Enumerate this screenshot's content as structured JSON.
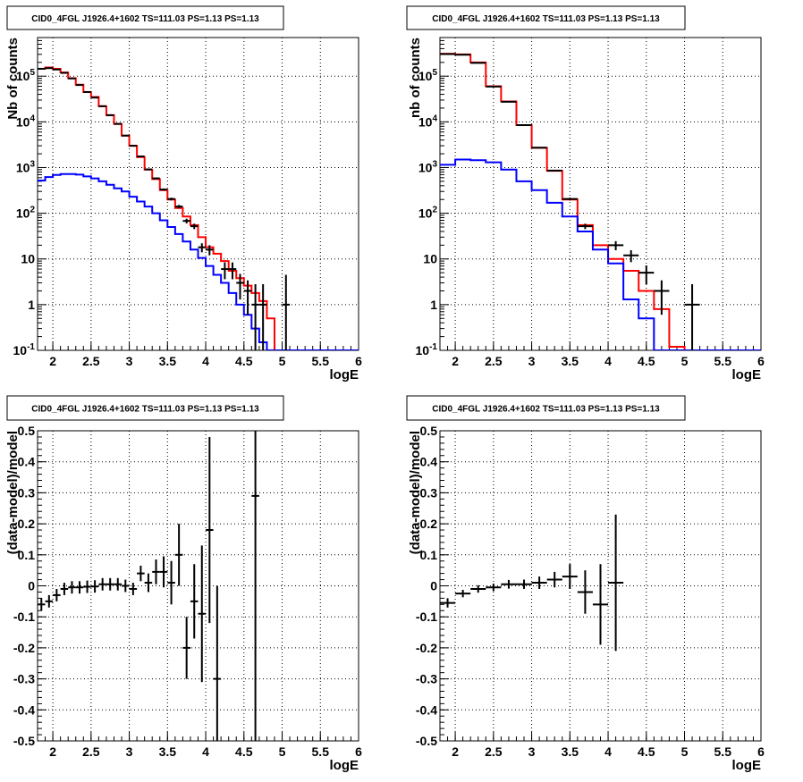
{
  "chart_data": [
    {
      "type": "line",
      "panel": "counts-all",
      "title": "CID0_4FGL J1926.4+1602 TS=111.03 PS=1.13 PS=1.13",
      "xlabel": "logE",
      "ylabel": "Nb of counts",
      "log_y": true,
      "xlim": [
        1.8,
        6.0
      ],
      "ylim": [
        0.1,
        700000
      ],
      "x_ticks": [
        "2",
        "2.5",
        "3",
        "3.5",
        "4",
        "4.5",
        "5",
        "5.5",
        "6"
      ],
      "y_ticks": [
        "10^-1",
        "1",
        "10",
        "10^2",
        "10^3",
        "10^4",
        "10^5"
      ],
      "grid": true,
      "bin_edges": [
        1.8,
        1.9,
        2.0,
        2.1,
        2.2,
        2.3,
        2.4,
        2.5,
        2.6,
        2.7,
        2.8,
        2.9,
        3.0,
        3.1,
        3.2,
        3.3,
        3.4,
        3.5,
        3.6,
        3.7,
        3.8,
        3.9,
        4.0,
        4.1,
        4.2,
        4.3,
        4.4,
        4.5,
        4.6,
        4.7,
        4.8,
        4.9,
        5.0,
        5.1,
        5.2,
        5.3,
        5.4,
        5.5,
        5.6,
        5.7,
        5.8,
        5.9,
        6.0
      ],
      "series": [
        {
          "color": "#ff0000",
          "style": "step",
          "values": [
            145000,
            155000,
            145000,
            120000,
            90000,
            65000,
            45000,
            35000,
            22000,
            14000,
            9000,
            5000,
            3000,
            1700,
            900,
            560,
            320,
            200,
            130,
            85,
            55,
            30,
            18,
            13,
            9,
            5.5,
            3.8,
            2.6,
            1.8,
            1.2,
            0.5,
            0.1,
            0.1,
            0.1,
            0.1,
            0.1,
            0.1,
            0.1,
            0.1,
            0.1,
            0.1,
            0.1
          ]
        },
        {
          "color": "#0000ff",
          "style": "step",
          "values": [
            520,
            620,
            690,
            720,
            720,
            700,
            640,
            580,
            500,
            420,
            350,
            300,
            230,
            180,
            140,
            100,
            70,
            50,
            35,
            24,
            16,
            10.5,
            7,
            4.5,
            3,
            1.8,
            1,
            0.6,
            0.3,
            0.15,
            0.1,
            0.1,
            0.1,
            0.1,
            0.1,
            0.1,
            0.1,
            0.1,
            0.1,
            0.1,
            0.1,
            0.1
          ]
        }
      ],
      "data_points": [
        {
          "x": 1.85,
          "y": 145000,
          "err_lo": 380,
          "err_hi": 380
        },
        {
          "x": 1.95,
          "y": 150000,
          "err_lo": 390,
          "err_hi": 390
        },
        {
          "x": 2.05,
          "y": 140000,
          "err_lo": 370,
          "err_hi": 370
        },
        {
          "x": 2.15,
          "y": 118000,
          "err_lo": 340,
          "err_hi": 340
        },
        {
          "x": 2.25,
          "y": 89000,
          "err_lo": 300,
          "err_hi": 300
        },
        {
          "x": 2.35,
          "y": 64000,
          "err_lo": 250,
          "err_hi": 250
        },
        {
          "x": 2.45,
          "y": 45000,
          "err_lo": 210,
          "err_hi": 210
        },
        {
          "x": 2.55,
          "y": 34000,
          "err_lo": 180,
          "err_hi": 180
        },
        {
          "x": 2.65,
          "y": 22000,
          "err_lo": 150,
          "err_hi": 150
        },
        {
          "x": 2.75,
          "y": 14000,
          "err_lo": 120,
          "err_hi": 120
        },
        {
          "x": 2.85,
          "y": 9000,
          "err_lo": 95,
          "err_hi": 95
        },
        {
          "x": 2.95,
          "y": 5000,
          "err_lo": 70,
          "err_hi": 70
        },
        {
          "x": 3.05,
          "y": 3000,
          "err_lo": 55,
          "err_hi": 55
        },
        {
          "x": 3.15,
          "y": 1750,
          "err_lo": 42,
          "err_hi": 42
        },
        {
          "x": 3.25,
          "y": 910,
          "err_lo": 30,
          "err_hi": 30
        },
        {
          "x": 3.35,
          "y": 580,
          "err_lo": 24,
          "err_hi": 24
        },
        {
          "x": 3.45,
          "y": 330,
          "err_lo": 18,
          "err_hi": 18
        },
        {
          "x": 3.55,
          "y": 205,
          "err_lo": 14,
          "err_hi": 14
        },
        {
          "x": 3.65,
          "y": 140,
          "err_lo": 12,
          "err_hi": 12
        },
        {
          "x": 3.75,
          "y": 68,
          "err_lo": 8,
          "err_hi": 8
        },
        {
          "x": 3.85,
          "y": 52,
          "err_lo": 7,
          "err_hi": 7
        },
        {
          "x": 3.95,
          "y": 18,
          "err_lo": 4,
          "err_hi": 4
        },
        {
          "x": 4.05,
          "y": 16,
          "err_lo": 4,
          "err_hi": 4
        },
        {
          "x": 4.25,
          "y": 6,
          "err_lo": 2.4,
          "err_hi": 2.4
        },
        {
          "x": 4.35,
          "y": 6,
          "err_lo": 2.4,
          "err_hi": 2.4
        },
        {
          "x": 4.45,
          "y": 3,
          "err_lo": 1.7,
          "err_hi": 1.7
        },
        {
          "x": 4.55,
          "y": 2,
          "err_lo": 1.4,
          "err_hi": 1.4
        },
        {
          "x": 4.65,
          "y": 1,
          "err_lo": 0.9,
          "err_hi": 1.8
        },
        {
          "x": 4.75,
          "y": 1,
          "err_lo": 0.9,
          "err_hi": 1.8
        },
        {
          "x": 5.05,
          "y": 1,
          "err_lo": 0.9,
          "err_hi": 3.5
        }
      ]
    },
    {
      "type": "line",
      "panel": "counts-binned",
      "title": "CID0_4FGL J1926.4+1602 TS=111.03 PS=1.13 PS=1.13",
      "xlabel": "logE",
      "ylabel": "nb of counts",
      "log_y": true,
      "xlim": [
        1.8,
        6.0
      ],
      "ylim": [
        0.1,
        700000
      ],
      "x_ticks": [
        "2",
        "2.5",
        "3",
        "3.5",
        "4",
        "4.5",
        "5",
        "5.5",
        "6"
      ],
      "y_ticks": [
        "10^-1",
        "1",
        "10",
        "10^2",
        "10^3",
        "10^4",
        "10^5"
      ],
      "grid": true,
      "bin_edges": [
        1.8,
        2.0,
        2.2,
        2.4,
        2.6,
        2.8,
        3.0,
        3.2,
        3.4,
        3.6,
        3.8,
        4.0,
        4.2,
        4.4,
        4.6,
        4.8,
        5.0,
        5.2,
        5.4,
        5.6,
        5.8,
        6.0
      ],
      "series": [
        {
          "color": "#ff0000",
          "style": "step",
          "values": [
            310000,
            300000,
            200000,
            60000,
            28000,
            8500,
            2700,
            850,
            200,
            55,
            20,
            10,
            5.5,
            2,
            0.8,
            0.12,
            0.1,
            0.1,
            0.1,
            0.1,
            0.1
          ]
        },
        {
          "color": "#0000ff",
          "style": "step",
          "values": [
            1150,
            1500,
            1450,
            1300,
            900,
            500,
            320,
            170,
            85,
            40,
            16,
            8,
            1.3,
            0.5,
            0.1,
            0.1,
            0.1,
            0.1,
            0.1,
            0.1,
            0.1
          ]
        }
      ],
      "data_points": [
        {
          "x": 1.9,
          "y": 305000,
          "err_lo": 550,
          "err_hi": 550
        },
        {
          "x": 2.1,
          "y": 295000,
          "err_lo": 540,
          "err_hi": 540
        },
        {
          "x": 2.3,
          "y": 195000,
          "err_lo": 440,
          "err_hi": 440
        },
        {
          "x": 2.5,
          "y": 59000,
          "err_lo": 240,
          "err_hi": 240
        },
        {
          "x": 2.7,
          "y": 27500,
          "err_lo": 165,
          "err_hi": 165
        },
        {
          "x": 2.9,
          "y": 8500,
          "err_lo": 92,
          "err_hi": 92
        },
        {
          "x": 3.1,
          "y": 2720,
          "err_lo": 52,
          "err_hi": 52
        },
        {
          "x": 3.3,
          "y": 860,
          "err_lo": 29,
          "err_hi": 29
        },
        {
          "x": 3.5,
          "y": 205,
          "err_lo": 14,
          "err_hi": 14
        },
        {
          "x": 3.7,
          "y": 52,
          "err_lo": 7,
          "err_hi": 7
        },
        {
          "x": 4.1,
          "y": 20,
          "err_lo": 4.5,
          "err_hi": 4.5
        },
        {
          "x": 4.3,
          "y": 12,
          "err_lo": 3.5,
          "err_hi": 3.5
        },
        {
          "x": 4.5,
          "y": 5,
          "err_lo": 2.2,
          "err_hi": 2.2
        },
        {
          "x": 4.7,
          "y": 2,
          "err_lo": 1.4,
          "err_hi": 1.4
        },
        {
          "x": 5.1,
          "y": 1,
          "err_lo": 0.9,
          "err_hi": 1.8
        }
      ]
    },
    {
      "type": "scatter",
      "panel": "residuals-all",
      "title": "CID0_4FGL J1926.4+1602 TS=111.03 PS=1.13 PS=1.13",
      "xlabel": "logE",
      "ylabel": "(data-model)/model",
      "log_y": false,
      "xlim": [
        1.8,
        6.0
      ],
      "ylim": [
        -0.5,
        0.5
      ],
      "x_ticks": [
        "2",
        "2.5",
        "3",
        "3.5",
        "4",
        "4.5",
        "5",
        "5.5",
        "6"
      ],
      "y_ticks": [
        "-0.5",
        "-0.4",
        "-0.3",
        "-0.2",
        "-0.1",
        "0",
        "0.1",
        "0.2",
        "0.3",
        "0.4",
        "0.5"
      ],
      "grid": true,
      "data_points": [
        {
          "x": 1.85,
          "y": -0.06,
          "xerr": 0.05,
          "yerr": 0.02
        },
        {
          "x": 1.95,
          "y": -0.05,
          "xerr": 0.05,
          "yerr": 0.02
        },
        {
          "x": 2.05,
          "y": -0.03,
          "xerr": 0.05,
          "yerr": 0.02
        },
        {
          "x": 2.15,
          "y": -0.01,
          "xerr": 0.05,
          "yerr": 0.02
        },
        {
          "x": 2.25,
          "y": -0.005,
          "xerr": 0.05,
          "yerr": 0.02
        },
        {
          "x": 2.35,
          "y": -0.005,
          "xerr": 0.05,
          "yerr": 0.02
        },
        {
          "x": 2.45,
          "y": -0.003,
          "xerr": 0.05,
          "yerr": 0.02
        },
        {
          "x": 2.55,
          "y": -0.002,
          "xerr": 0.05,
          "yerr": 0.02
        },
        {
          "x": 2.65,
          "y": 0.005,
          "xerr": 0.05,
          "yerr": 0.02
        },
        {
          "x": 2.75,
          "y": 0.005,
          "xerr": 0.05,
          "yerr": 0.02
        },
        {
          "x": 2.85,
          "y": 0.005,
          "xerr": 0.05,
          "yerr": 0.02
        },
        {
          "x": 2.95,
          "y": 0.0,
          "xerr": 0.05,
          "yerr": 0.02
        },
        {
          "x": 3.05,
          "y": -0.01,
          "xerr": 0.05,
          "yerr": 0.02
        },
        {
          "x": 3.15,
          "y": 0.04,
          "xerr": 0.05,
          "yerr": 0.025
        },
        {
          "x": 3.25,
          "y": 0.01,
          "xerr": 0.05,
          "yerr": 0.03
        },
        {
          "x": 3.35,
          "y": 0.045,
          "xerr": 0.05,
          "yerr": 0.04
        },
        {
          "x": 3.45,
          "y": 0.045,
          "xerr": 0.05,
          "yerr": 0.05
        },
        {
          "x": 3.55,
          "y": 0.01,
          "xerr": 0.05,
          "yerr": 0.07
        },
        {
          "x": 3.65,
          "y": 0.1,
          "xerr": 0.05,
          "yerr": 0.1
        },
        {
          "x": 3.75,
          "y": -0.2,
          "xerr": 0.05,
          "yerr": 0.1
        },
        {
          "x": 3.85,
          "y": -0.05,
          "xerr": 0.05,
          "yerr": 0.12
        },
        {
          "x": 3.95,
          "y": -0.09,
          "xerr": 0.05,
          "yerr": 0.22
        },
        {
          "x": 4.05,
          "y": 0.18,
          "xerr": 0.05,
          "yerr": 0.3
        },
        {
          "x": 4.15,
          "y": -0.3,
          "xerr": 0.05,
          "yerr": 0.3
        },
        {
          "x": 4.65,
          "y": 0.29,
          "xerr": 0.05,
          "yerr": 0.8
        }
      ]
    },
    {
      "type": "scatter",
      "panel": "residuals-binned",
      "title": "CID0_4FGL J1926.4+1602 TS=111.03 PS=1.13 PS=1.13",
      "xlabel": "logE",
      "ylabel": "(data-model)/model",
      "log_y": false,
      "xlim": [
        1.8,
        6.0
      ],
      "ylim": [
        -0.5,
        0.5
      ],
      "x_ticks": [
        "2",
        "2.5",
        "3",
        "3.5",
        "4",
        "4.5",
        "5",
        "5.5",
        "6"
      ],
      "y_ticks": [
        "-0.5",
        "-0.4",
        "-0.3",
        "-0.2",
        "-0.1",
        "0",
        "0.1",
        "0.2",
        "0.3",
        "0.4",
        "0.5"
      ],
      "grid": true,
      "data_points": [
        {
          "x": 1.9,
          "y": -0.055,
          "xerr": 0.1,
          "yerr": 0.015
        },
        {
          "x": 2.1,
          "y": -0.025,
          "xerr": 0.1,
          "yerr": 0.012
        },
        {
          "x": 2.3,
          "y": -0.01,
          "xerr": 0.1,
          "yerr": 0.012
        },
        {
          "x": 2.5,
          "y": -0.005,
          "xerr": 0.1,
          "yerr": 0.012
        },
        {
          "x": 2.7,
          "y": 0.005,
          "xerr": 0.1,
          "yerr": 0.014
        },
        {
          "x": 2.9,
          "y": 0.005,
          "xerr": 0.1,
          "yerr": 0.015
        },
        {
          "x": 3.1,
          "y": 0.01,
          "xerr": 0.1,
          "yerr": 0.02
        },
        {
          "x": 3.3,
          "y": 0.02,
          "xerr": 0.1,
          "yerr": 0.025
        },
        {
          "x": 3.5,
          "y": 0.03,
          "xerr": 0.1,
          "yerr": 0.04
        },
        {
          "x": 3.7,
          "y": -0.02,
          "xerr": 0.1,
          "yerr": 0.07
        },
        {
          "x": 3.9,
          "y": -0.06,
          "xerr": 0.1,
          "yerr": 0.13
        },
        {
          "x": 4.1,
          "y": 0.01,
          "xerr": 0.1,
          "yerr": 0.22
        }
      ]
    }
  ]
}
